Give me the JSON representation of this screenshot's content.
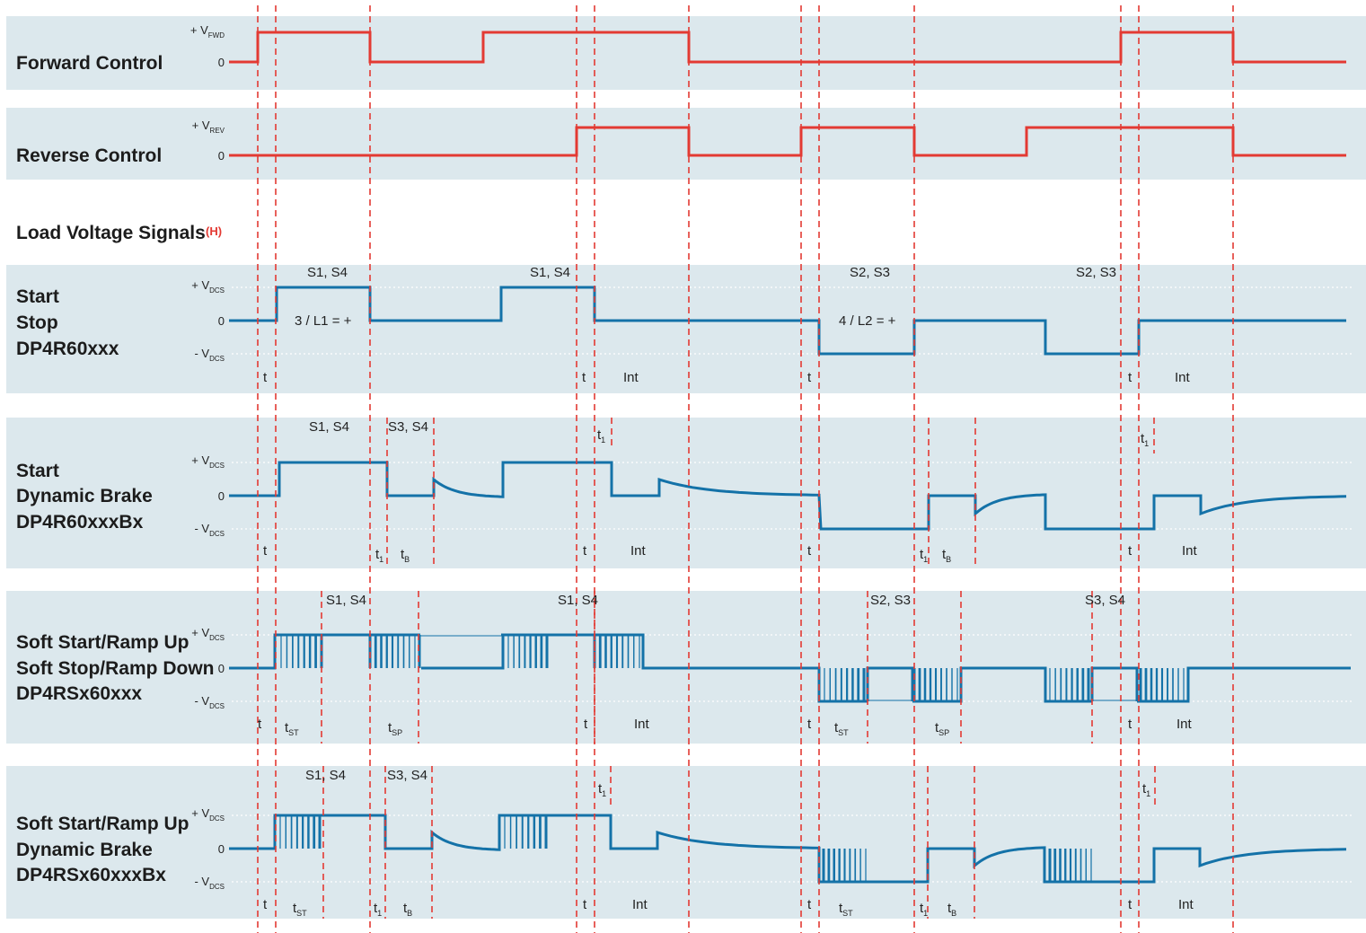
{
  "colors": {
    "band": "#dce8ed",
    "control_trace": "#e33a33",
    "load_trace": "#1472a8",
    "marker": "#e33a33",
    "dotted": "#ffffff"
  },
  "control_panels": [
    {
      "id": "forward",
      "label": "Forward Control",
      "level_labels": {
        "high": "+ V",
        "high_sub": "FWD",
        "zero": "0"
      }
    },
    {
      "id": "reverse",
      "label": "Reverse Control",
      "level_labels": {
        "high": "+ V",
        "high_sub": "REV",
        "zero": "0"
      }
    }
  ],
  "load_section": {
    "title": "Load Voltage Signals",
    "note": "(H)"
  },
  "load_panels": [
    {
      "id": "start-stop",
      "lines": [
        "Start",
        "Stop",
        "DP4R60xxx"
      ],
      "level_labels": {
        "high": "+ V",
        "high_sub": "DCS",
        "zero": "0",
        "low": "- V",
        "low_sub": "DCS"
      }
    },
    {
      "id": "start-dynamic-brake",
      "lines": [
        "Start",
        "Dynamic Brake",
        "DP4R60xxxBx"
      ],
      "level_labels": {
        "high": "+ V",
        "high_sub": "DCS",
        "zero": "0",
        "low": "- V",
        "low_sub": "DCS"
      }
    },
    {
      "id": "soft-start-soft-stop",
      "lines": [
        "Soft Start/Ramp Up",
        "Soft Stop/Ramp Down",
        "DP4RSx60xxx"
      ],
      "level_labels": {
        "high": "+ V",
        "high_sub": "DCS",
        "zero": "0",
        "low": "- V",
        "low_sub": "DCS"
      }
    },
    {
      "id": "soft-start-dynamic-brake",
      "lines": [
        "Soft Start/Ramp Up",
        "Dynamic Brake",
        "DP4RSx60xxxBx"
      ],
      "level_labels": {
        "high": "+ V",
        "high_sub": "DCS",
        "zero": "0",
        "low": "- V",
        "low_sub": "DCS"
      }
    }
  ],
  "annotations": {
    "start-stop": [
      {
        "t": "S1, S4"
      },
      {
        "t": "S1, S4"
      },
      {
        "t": "S2, S3"
      },
      {
        "t": "S2, S3"
      },
      {
        "t": "3 / L1 = +"
      },
      {
        "t": "4 / L2 = +"
      },
      {
        "t": "t"
      },
      {
        "t": "t"
      },
      {
        "t": "Int"
      },
      {
        "t": "t"
      },
      {
        "t": "t"
      },
      {
        "t": "Int"
      }
    ],
    "start-dynamic-brake": [
      {
        "t": "S1, S4"
      },
      {
        "t": "S3, S4"
      },
      {
        "t": "t",
        "sub": "1"
      },
      {
        "t": "t",
        "sub": "1"
      },
      {
        "t": "t"
      },
      {
        "t": "t",
        "sub": "1"
      },
      {
        "t": "t",
        "sub": "B"
      },
      {
        "t": "t"
      },
      {
        "t": "Int"
      },
      {
        "t": "t"
      },
      {
        "t": "t",
        "sub": "1"
      },
      {
        "t": "t",
        "sub": "B"
      },
      {
        "t": "t"
      },
      {
        "t": "Int"
      }
    ],
    "soft-start-soft-stop": [
      {
        "t": "S1, S4"
      },
      {
        "t": "S1, S4"
      },
      {
        "t": "S2, S3"
      },
      {
        "t": "S3, S4"
      },
      {
        "t": "t"
      },
      {
        "t": "t",
        "sub": "ST"
      },
      {
        "t": "t",
        "sub": "SP"
      },
      {
        "t": "t"
      },
      {
        "t": "Int"
      },
      {
        "t": "t"
      },
      {
        "t": "t",
        "sub": "ST"
      },
      {
        "t": "t",
        "sub": "SP"
      },
      {
        "t": "t"
      },
      {
        "t": "Int"
      }
    ],
    "soft-start-dynamic-brake": [
      {
        "t": "S1, S4"
      },
      {
        "t": "S3, S4"
      },
      {
        "t": "t",
        "sub": "1"
      },
      {
        "t": "t",
        "sub": "1"
      },
      {
        "t": "t"
      },
      {
        "t": "t",
        "sub": "ST"
      },
      {
        "t": "t",
        "sub": "1"
      },
      {
        "t": "t",
        "sub": "B"
      },
      {
        "t": "t"
      },
      {
        "t": "Int"
      },
      {
        "t": "t"
      },
      {
        "t": "t",
        "sub": "ST"
      },
      {
        "t": "t",
        "sub": "1"
      },
      {
        "t": "t",
        "sub": "B"
      },
      {
        "t": "t"
      },
      {
        "t": "Int"
      }
    ]
  }
}
